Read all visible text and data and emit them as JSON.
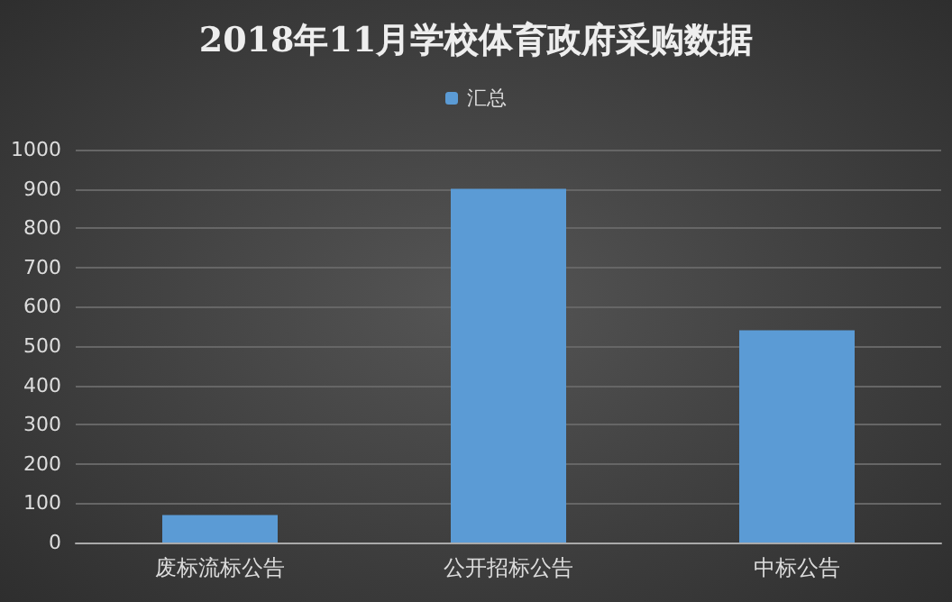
{
  "chart_data": {
    "type": "bar",
    "title": "2018年11月学校体育政府采购数据",
    "categories": [
      "废标流标公告",
      "公开招标公告",
      "中标公告"
    ],
    "series": [
      {
        "name": "汇总",
        "color": "#5b9bd5",
        "values": [
          70,
          900,
          540
        ]
      }
    ],
    "ylim": [
      0,
      1000
    ],
    "yticks": [
      0,
      100,
      200,
      300,
      400,
      500,
      600,
      700,
      800,
      900,
      1000
    ],
    "grid": "y",
    "legend": "top"
  }
}
